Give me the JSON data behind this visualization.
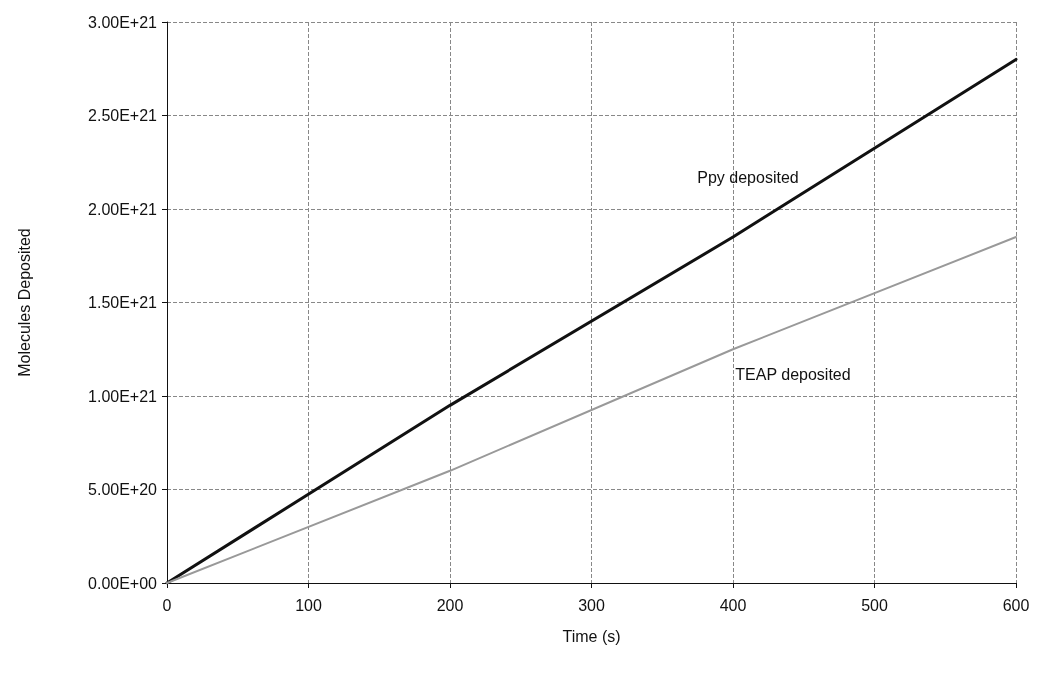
{
  "chart_data": {
    "type": "line",
    "xlabel": "Time (s)",
    "ylabel": "Molecules Deposited",
    "x": [
      0,
      200,
      400,
      600
    ],
    "series": [
      {
        "name": "Ppy deposited",
        "color": "#111111",
        "values": [
          0,
          9.5e+20,
          1.85e+21,
          2.8e+21
        ]
      },
      {
        "name": "TEAP deposited",
        "color": "#999999",
        "values": [
          0,
          6e+20,
          1.25e+21,
          1.85e+21
        ]
      }
    ],
    "xlim": [
      0,
      600
    ],
    "xticks": [
      0,
      100,
      200,
      300,
      400,
      500,
      600
    ],
    "ylim": [
      0,
      3e+21
    ],
    "yticks": [
      {
        "value": 0,
        "label": "0.00E+00"
      },
      {
        "value": 5e+20,
        "label": "5.00E+20"
      },
      {
        "value": 1e+21,
        "label": "1.00E+21"
      },
      {
        "value": 1.5e+21,
        "label": "1.50E+21"
      },
      {
        "value": 2e+21,
        "label": "2.00E+21"
      },
      {
        "value": 2.5e+21,
        "label": "2.50E+21"
      },
      {
        "value": 3e+21,
        "label": "3.00E+21"
      }
    ],
    "grid": true,
    "marker": "none",
    "line_style": "solid"
  }
}
